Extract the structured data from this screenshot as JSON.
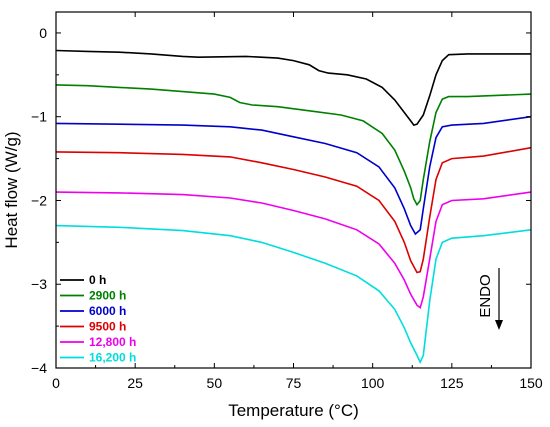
{
  "chart_data": {
    "type": "line",
    "xlabel": "Temperature (°C)",
    "ylabel": "Heat flow (W/g)",
    "xlim": [
      0,
      150
    ],
    "ylim": [
      -4,
      0.25
    ],
    "xticks": [
      0,
      25,
      50,
      75,
      100,
      125,
      150
    ],
    "yticks": [
      0,
      -1,
      -2,
      -3,
      -4
    ],
    "grid": false,
    "legend_position": "bottom-left",
    "annotation": {
      "text": "ENDO",
      "arrow": "down"
    },
    "series": [
      {
        "name": "0 h",
        "color": "#000000",
        "points": [
          [
            0,
            -0.21
          ],
          [
            10,
            -0.22
          ],
          [
            20,
            -0.23
          ],
          [
            30,
            -0.25
          ],
          [
            40,
            -0.28
          ],
          [
            45,
            -0.29
          ],
          [
            60,
            -0.28
          ],
          [
            70,
            -0.3
          ],
          [
            75,
            -0.33
          ],
          [
            80,
            -0.38
          ],
          [
            83,
            -0.45
          ],
          [
            86,
            -0.48
          ],
          [
            92,
            -0.5
          ],
          [
            98,
            -0.55
          ],
          [
            103,
            -0.65
          ],
          [
            107,
            -0.8
          ],
          [
            110,
            -0.95
          ],
          [
            112,
            -1.05
          ],
          [
            113,
            -1.1
          ],
          [
            114,
            -1.09
          ],
          [
            116,
            -0.98
          ],
          [
            118,
            -0.75
          ],
          [
            120,
            -0.5
          ],
          [
            122,
            -0.33
          ],
          [
            124,
            -0.26
          ],
          [
            130,
            -0.25
          ],
          [
            150,
            -0.25
          ]
        ]
      },
      {
        "name": "2900 h",
        "color": "#008000",
        "points": [
          [
            0,
            -0.62
          ],
          [
            10,
            -0.63
          ],
          [
            20,
            -0.65
          ],
          [
            30,
            -0.67
          ],
          [
            40,
            -0.7
          ],
          [
            50,
            -0.73
          ],
          [
            55,
            -0.77
          ],
          [
            58,
            -0.83
          ],
          [
            62,
            -0.86
          ],
          [
            70,
            -0.88
          ],
          [
            80,
            -0.93
          ],
          [
            90,
            -0.98
          ],
          [
            97,
            -1.05
          ],
          [
            103,
            -1.2
          ],
          [
            107,
            -1.4
          ],
          [
            110,
            -1.65
          ],
          [
            112,
            -1.85
          ],
          [
            113,
            -1.98
          ],
          [
            114,
            -2.05
          ],
          [
            115,
            -2.0
          ],
          [
            116,
            -1.75
          ],
          [
            118,
            -1.3
          ],
          [
            120,
            -0.95
          ],
          [
            122,
            -0.79
          ],
          [
            124,
            -0.76
          ],
          [
            130,
            -0.76
          ],
          [
            150,
            -0.73
          ]
        ]
      },
      {
        "name": "6000 h",
        "color": "#0000cc",
        "points": [
          [
            0,
            -1.08
          ],
          [
            20,
            -1.09
          ],
          [
            40,
            -1.1
          ],
          [
            55,
            -1.12
          ],
          [
            65,
            -1.16
          ],
          [
            75,
            -1.24
          ],
          [
            85,
            -1.32
          ],
          [
            95,
            -1.43
          ],
          [
            102,
            -1.6
          ],
          [
            107,
            -1.85
          ],
          [
            110,
            -2.1
          ],
          [
            112,
            -2.3
          ],
          [
            113.5,
            -2.4
          ],
          [
            115,
            -2.35
          ],
          [
            116,
            -2.1
          ],
          [
            118,
            -1.6
          ],
          [
            120,
            -1.25
          ],
          [
            122,
            -1.12
          ],
          [
            125,
            -1.1
          ],
          [
            135,
            -1.08
          ],
          [
            150,
            -1.0
          ]
        ]
      },
      {
        "name": "9500 h",
        "color": "#dd0000",
        "points": [
          [
            0,
            -1.42
          ],
          [
            20,
            -1.43
          ],
          [
            40,
            -1.45
          ],
          [
            55,
            -1.48
          ],
          [
            65,
            -1.55
          ],
          [
            75,
            -1.63
          ],
          [
            85,
            -1.72
          ],
          [
            95,
            -1.83
          ],
          [
            102,
            -2.0
          ],
          [
            107,
            -2.25
          ],
          [
            110,
            -2.5
          ],
          [
            112,
            -2.72
          ],
          [
            114,
            -2.86
          ],
          [
            115,
            -2.85
          ],
          [
            116,
            -2.7
          ],
          [
            118,
            -2.2
          ],
          [
            120,
            -1.75
          ],
          [
            122,
            -1.55
          ],
          [
            125,
            -1.5
          ],
          [
            135,
            -1.47
          ],
          [
            150,
            -1.37
          ]
        ]
      },
      {
        "name": "12,800 h",
        "color": "#ee00ee",
        "points": [
          [
            0,
            -1.9
          ],
          [
            20,
            -1.91
          ],
          [
            40,
            -1.93
          ],
          [
            55,
            -1.97
          ],
          [
            65,
            -2.03
          ],
          [
            75,
            -2.12
          ],
          [
            85,
            -2.22
          ],
          [
            95,
            -2.35
          ],
          [
            102,
            -2.52
          ],
          [
            107,
            -2.75
          ],
          [
            110,
            -2.95
          ],
          [
            112,
            -3.12
          ],
          [
            114,
            -3.25
          ],
          [
            115,
            -3.28
          ],
          [
            116,
            -3.15
          ],
          [
            118,
            -2.7
          ],
          [
            120,
            -2.25
          ],
          [
            122,
            -2.05
          ],
          [
            125,
            -2.0
          ],
          [
            135,
            -1.98
          ],
          [
            150,
            -1.9
          ]
        ]
      },
      {
        "name": "16,200 h",
        "color": "#00dddd",
        "points": [
          [
            0,
            -2.3
          ],
          [
            20,
            -2.32
          ],
          [
            40,
            -2.36
          ],
          [
            55,
            -2.42
          ],
          [
            65,
            -2.5
          ],
          [
            75,
            -2.62
          ],
          [
            85,
            -2.75
          ],
          [
            95,
            -2.9
          ],
          [
            102,
            -3.08
          ],
          [
            107,
            -3.3
          ],
          [
            110,
            -3.52
          ],
          [
            112,
            -3.7
          ],
          [
            114,
            -3.85
          ],
          [
            115,
            -3.93
          ],
          [
            116,
            -3.85
          ],
          [
            118,
            -3.2
          ],
          [
            120,
            -2.7
          ],
          [
            122,
            -2.5
          ],
          [
            125,
            -2.45
          ],
          [
            135,
            -2.42
          ],
          [
            150,
            -2.35
          ]
        ]
      }
    ]
  }
}
